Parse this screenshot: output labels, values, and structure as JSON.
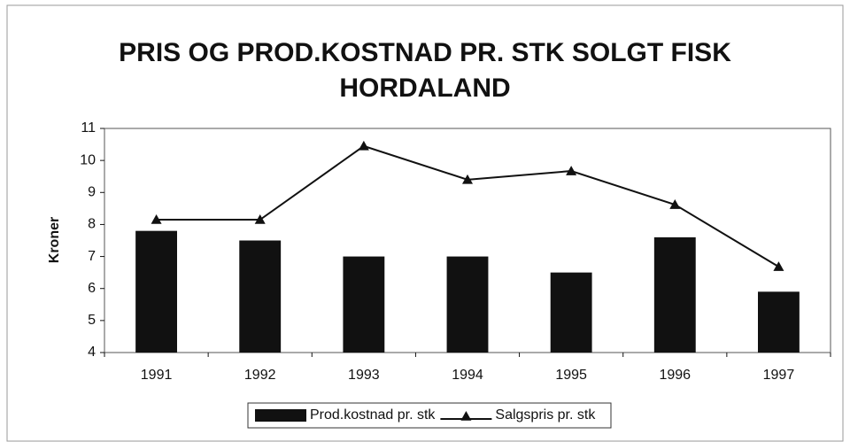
{
  "chart_data": {
    "type": "bar_line",
    "title": "PRIS OG PROD.KOSTNAD PR. STK SOLGT FISK HORDALAND",
    "y_label": "Kroner",
    "categories": [
      "1991",
      "1992",
      "1993",
      "1994",
      "1995",
      "1996",
      "1997"
    ],
    "series": [
      {
        "name": "Prod.kostnad pr. stk",
        "type": "bar",
        "color": "#111111",
        "values": [
          7.8,
          7.5,
          7.0,
          7.0,
          6.5,
          7.6,
          5.9
        ]
      },
      {
        "name": "Salgspris pr. stk",
        "type": "line",
        "color": "#111111",
        "values": [
          8.15,
          8.15,
          10.45,
          9.4,
          9.67,
          8.62,
          6.68
        ]
      }
    ],
    "ylim": [
      4,
      11
    ],
    "yticks": [
      4,
      5,
      6,
      7,
      8,
      9,
      10,
      11
    ],
    "grid": false,
    "legend": "bottom"
  }
}
